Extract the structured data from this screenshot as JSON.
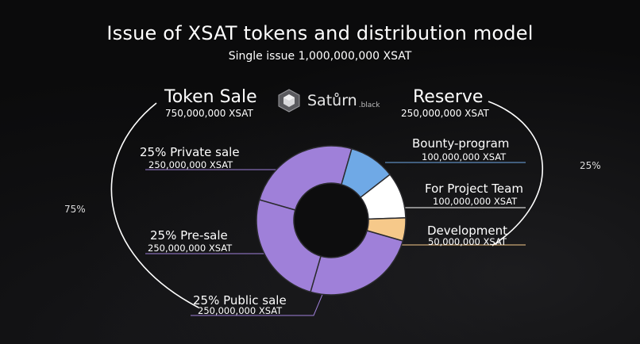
{
  "title": "Issue of XSAT tokens and distribution model",
  "subtitle": "Single issue 1,000,000,000 XSAT",
  "logo": {
    "name": "Satůrn",
    "suffix": ".black",
    "icon": "cube-logo-icon"
  },
  "token_sale": {
    "title": "Token Sale",
    "amount": "750,000,000 XSAT",
    "percent": "75%"
  },
  "reserve": {
    "title": "Reserve",
    "amount": "250,000,000 XSAT",
    "percent": "25%"
  },
  "segments_text": {
    "private": {
      "label": "25% Private sale",
      "amount": "250,000,000 XSAT"
    },
    "presale": {
      "label": "25% Pre-sale",
      "amount": "250,000,000 XSAT"
    },
    "public": {
      "label": "25% Public sale",
      "amount": "250,000,000 XSAT"
    },
    "bounty": {
      "label": "Bounty-program",
      "amount": "100,000,000 XSAT"
    },
    "team": {
      "label": "For Project Team",
      "amount": "100,000,000 XSAT"
    },
    "dev": {
      "label": "Development",
      "amount": "50,000,000 XSAT"
    }
  },
  "colors": {
    "sale": "#9f80d9",
    "bounty": "#6fa9e6",
    "team": "#ffffff",
    "dev": "#f6c98a",
    "separator": "#2a2a2e"
  },
  "chart_data": {
    "type": "pie",
    "title": "Issue of XSAT tokens and distribution model",
    "subtitle": "Single issue 1,000,000,000 XSAT",
    "unit": "XSAT",
    "slices": [
      {
        "name": "Private sale",
        "value": 250000000,
        "color": "#9f80d9"
      },
      {
        "name": "Bounty-program",
        "value": 100000000,
        "color": "#6fa9e6"
      },
      {
        "name": "For Project Team",
        "value": 100000000,
        "color": "#ffffff"
      },
      {
        "name": "Development",
        "value": 50000000,
        "color": "#f6c98a"
      },
      {
        "name": "Public sale",
        "value": 250000000,
        "color": "#9f80d9"
      },
      {
        "name": "Pre-sale",
        "value": 250000000,
        "color": "#9f80d9"
      }
    ],
    "groups": [
      {
        "name": "Token Sale",
        "value": 750000000,
        "percent": "75%"
      },
      {
        "name": "Reserve",
        "value": 250000000,
        "percent": "25%"
      }
    ]
  }
}
